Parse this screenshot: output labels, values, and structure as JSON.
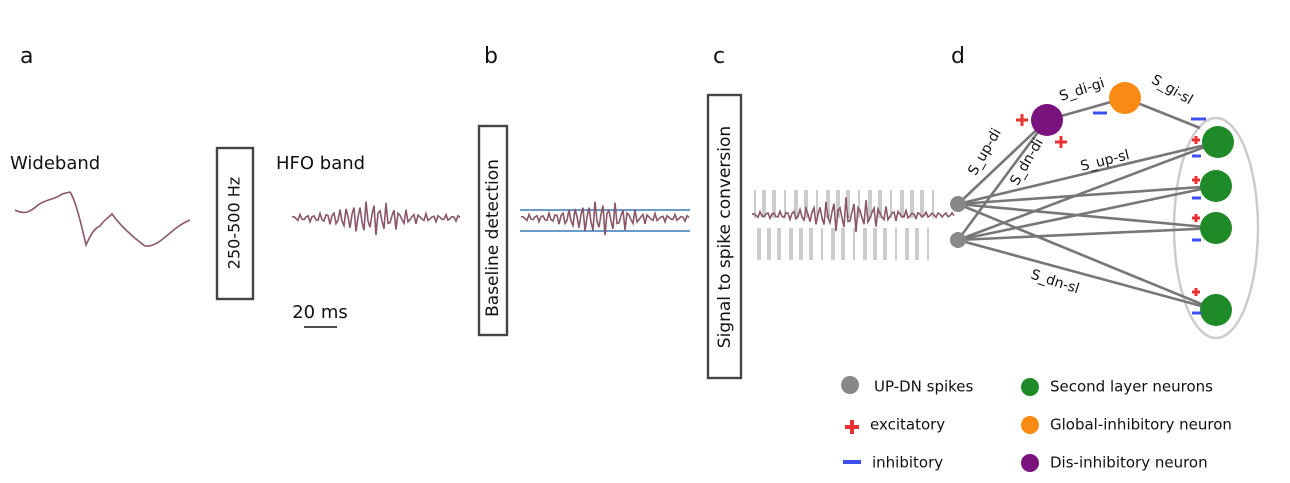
{
  "panel_a": {
    "label": "a",
    "wideband": "Wideband",
    "filter": "250-500 Hz",
    "hfo": "HFO band",
    "scale_bar": "20 ms"
  },
  "panel_b": {
    "label": "b",
    "box": "Baseline detection"
  },
  "panel_c": {
    "label": "c",
    "box": "Signal to spike conversion"
  },
  "panel_d": {
    "label": "d",
    "edges": [
      "S_up-di",
      "S_dn-di",
      "S_di-gi",
      "S_gi-sl",
      "S_up-sl",
      "S_dn-sl"
    ],
    "legend": [
      "UP-DN spikes",
      "excitatory",
      "inhibitory",
      "Second layer neurons",
      "Global-inhibitory neuron",
      "Dis-inhibitory neuron"
    ]
  }
}
